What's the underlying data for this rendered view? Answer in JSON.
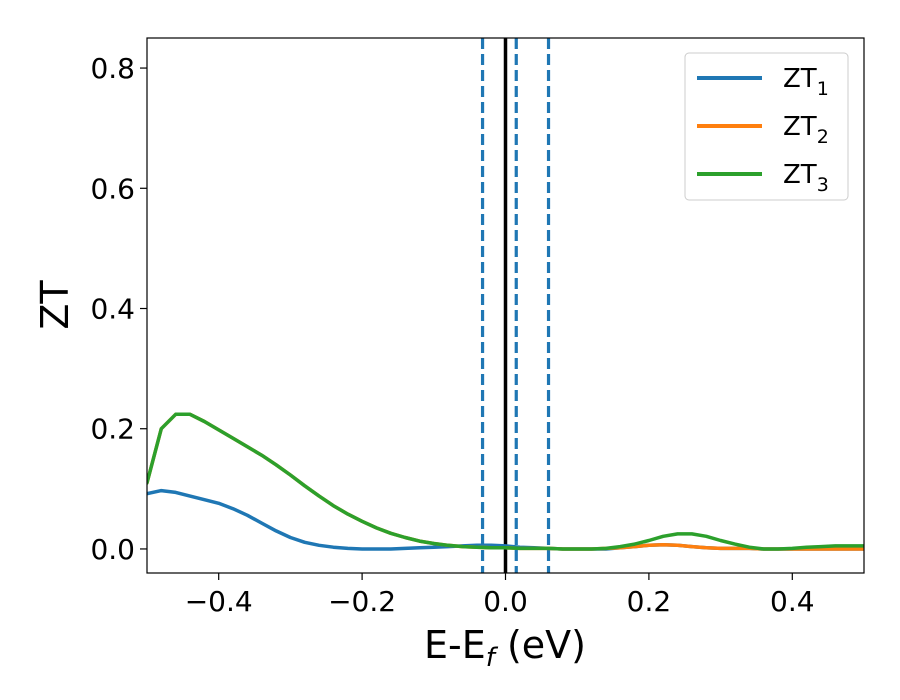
{
  "chart_data": {
    "type": "line",
    "title": "",
    "xlabel": {
      "main": "E-E",
      "sub": "f",
      "unit": " (eV)"
    },
    "ylabel": "ZT",
    "xlim": [
      -0.5,
      0.5
    ],
    "ylim": [
      -0.04,
      0.85
    ],
    "xticks": [
      -0.4,
      -0.2,
      0.0,
      0.2,
      0.4
    ],
    "xtick_labels": [
      "−0.4",
      "−0.2",
      "0.0",
      "0.2",
      "0.4"
    ],
    "yticks": [
      0.0,
      0.2,
      0.4,
      0.6,
      0.8
    ],
    "ytick_labels": [
      "0.0",
      "0.2",
      "0.4",
      "0.6",
      "0.8"
    ],
    "grid": false,
    "legend_position": "top-right",
    "series": [
      {
        "name": "ZT",
        "sub": "1",
        "color": "#1f77b4",
        "x": [
          -0.5,
          -0.48,
          -0.46,
          -0.44,
          -0.42,
          -0.4,
          -0.38,
          -0.36,
          -0.34,
          -0.32,
          -0.3,
          -0.28,
          -0.26,
          -0.24,
          -0.22,
          -0.2,
          -0.18,
          -0.16,
          -0.14,
          -0.12,
          -0.1,
          -0.08,
          -0.06,
          -0.04,
          -0.02,
          0.0,
          0.02,
          0.04,
          0.06,
          0.08,
          0.1,
          0.12,
          0.14,
          0.16,
          0.18,
          0.2,
          0.22,
          0.24,
          0.26,
          0.28,
          0.3,
          0.32,
          0.34,
          0.36,
          0.38,
          0.4,
          0.42,
          0.44,
          0.46,
          0.48,
          0.5
        ],
        "y": [
          0.092,
          0.097,
          0.094,
          0.088,
          0.082,
          0.076,
          0.067,
          0.056,
          0.043,
          0.03,
          0.019,
          0.011,
          0.006,
          0.003,
          0.001,
          0.0,
          0.0,
          0.0,
          0.001,
          0.002,
          0.003,
          0.004,
          0.005,
          0.006,
          0.006,
          0.005,
          0.003,
          0.002,
          0.001,
          0.0,
          0.0,
          0.0,
          0.0,
          0.002,
          0.004,
          0.006,
          0.007,
          0.006,
          0.004,
          0.002,
          0.001,
          0.001,
          0.001,
          0.0,
          0.0,
          0.0,
          0.0,
          0.0,
          0.0,
          0.0,
          0.0
        ]
      },
      {
        "name": "ZT",
        "sub": "2",
        "color": "#ff7f0e",
        "x": [
          -0.5,
          -0.48,
          -0.46,
          -0.44,
          -0.42,
          -0.4,
          -0.38,
          -0.36,
          -0.34,
          -0.32,
          -0.3,
          -0.28,
          -0.26,
          -0.24,
          -0.22,
          -0.2,
          -0.18,
          -0.16,
          -0.14,
          -0.12,
          -0.1,
          -0.08,
          -0.06,
          -0.04,
          -0.02,
          0.0,
          0.02,
          0.04,
          0.06,
          0.08,
          0.1,
          0.12,
          0.14,
          0.16,
          0.18,
          0.2,
          0.22,
          0.24,
          0.26,
          0.28,
          0.3,
          0.32,
          0.34,
          0.36,
          0.38,
          0.4,
          0.42,
          0.44,
          0.46,
          0.48,
          0.5
        ],
        "y": [
          0.11,
          0.2,
          0.224,
          0.224,
          0.212,
          0.198,
          0.184,
          0.17,
          0.156,
          0.14,
          0.123,
          0.105,
          0.088,
          0.072,
          0.058,
          0.046,
          0.035,
          0.026,
          0.019,
          0.013,
          0.009,
          0.006,
          0.004,
          0.003,
          0.002,
          0.002,
          0.001,
          0.001,
          0.001,
          0.0,
          0.0,
          0.0,
          0.001,
          0.002,
          0.004,
          0.006,
          0.007,
          0.006,
          0.004,
          0.002,
          0.001,
          0.001,
          0.001,
          0.0,
          0.0,
          0.0,
          0.0,
          0.0,
          0.0,
          0.0,
          0.0
        ]
      },
      {
        "name": "ZT",
        "sub": "3",
        "color": "#2ca02c",
        "x": [
          -0.5,
          -0.48,
          -0.46,
          -0.44,
          -0.42,
          -0.4,
          -0.38,
          -0.36,
          -0.34,
          -0.32,
          -0.3,
          -0.28,
          -0.26,
          -0.24,
          -0.22,
          -0.2,
          -0.18,
          -0.16,
          -0.14,
          -0.12,
          -0.1,
          -0.08,
          -0.06,
          -0.04,
          -0.02,
          0.0,
          0.02,
          0.04,
          0.06,
          0.08,
          0.1,
          0.12,
          0.14,
          0.16,
          0.18,
          0.2,
          0.22,
          0.24,
          0.26,
          0.28,
          0.3,
          0.32,
          0.34,
          0.36,
          0.38,
          0.4,
          0.42,
          0.44,
          0.46,
          0.48,
          0.5
        ],
        "y": [
          0.11,
          0.2,
          0.224,
          0.224,
          0.212,
          0.198,
          0.184,
          0.17,
          0.156,
          0.14,
          0.123,
          0.105,
          0.088,
          0.072,
          0.058,
          0.046,
          0.035,
          0.026,
          0.019,
          0.013,
          0.009,
          0.006,
          0.004,
          0.003,
          0.002,
          0.002,
          0.001,
          0.001,
          0.001,
          0.0,
          0.0,
          0.0,
          0.001,
          0.004,
          0.008,
          0.014,
          0.021,
          0.025,
          0.025,
          0.021,
          0.014,
          0.008,
          0.003,
          0.0,
          0.0,
          0.001,
          0.003,
          0.004,
          0.005,
          0.005,
          0.005
        ]
      }
    ],
    "vertical_lines": [
      {
        "x": 0.0,
        "style": "solid",
        "color": "#000000"
      },
      {
        "x": -0.032,
        "style": "dashed",
        "color": "#1f77b4"
      },
      {
        "x": 0.015,
        "style": "dashed",
        "color": "#1f77b4"
      },
      {
        "x": 0.06,
        "style": "dashed",
        "color": "#1f77b4"
      }
    ]
  }
}
